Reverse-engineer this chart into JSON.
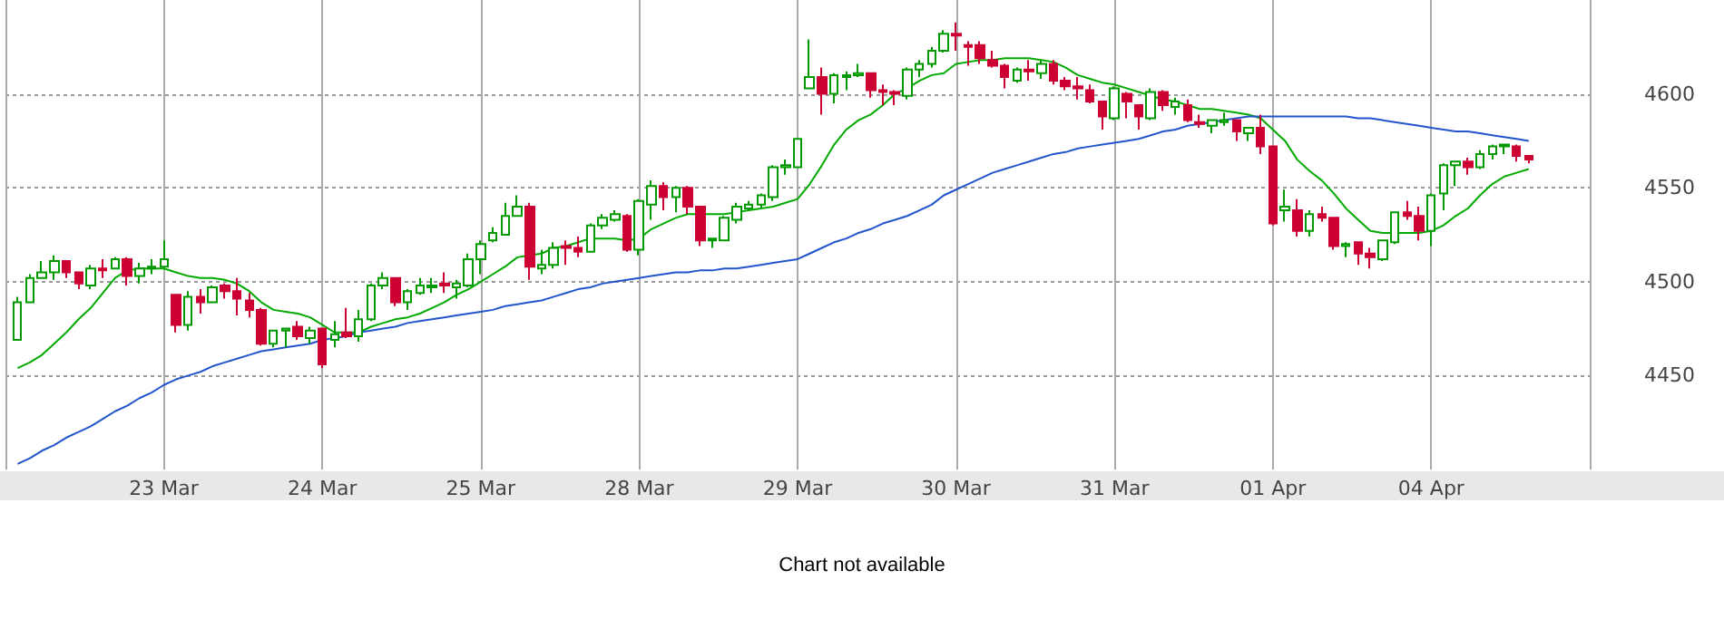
{
  "chart_data": {
    "type": "candlestick",
    "categories": [
      null,
      null,
      null,
      null,
      null,
      null,
      null,
      null,
      null,
      null,
      null,
      null,
      "23 Mar",
      null,
      null,
      null,
      null,
      null,
      null,
      null,
      null,
      null,
      null,
      null,
      null,
      "24 Mar",
      null,
      null,
      null,
      null,
      null,
      null,
      null,
      null,
      null,
      null,
      null,
      null,
      "25 Mar",
      null,
      null,
      null,
      null,
      null,
      null,
      null,
      null,
      null,
      null,
      null,
      null,
      "28 Mar",
      null,
      null,
      null,
      null,
      null,
      null,
      null,
      null,
      null,
      null,
      null,
      null,
      "29 Mar",
      null,
      null,
      null,
      null,
      null,
      null,
      null,
      null,
      null,
      null,
      null,
      null,
      "30 Mar",
      null,
      null,
      null,
      null,
      null,
      null,
      null,
      null,
      null,
      null,
      null,
      null,
      "31 Mar",
      null,
      null,
      null,
      null,
      null,
      null,
      null,
      null,
      null,
      null,
      null,
      null,
      "01 Apr",
      null,
      null,
      null,
      null,
      null,
      null,
      null,
      null,
      null,
      null,
      null,
      null,
      "04 Apr",
      null,
      null,
      null,
      null,
      null,
      null,
      null,
      null
    ],
    "ohlc": [
      [
        4469,
        4492,
        4469,
        4489
      ],
      [
        4489,
        4504,
        4489,
        4502
      ],
      [
        4502,
        4511,
        4502,
        4505
      ],
      [
        4505,
        4514,
        4501,
        4511
      ],
      [
        4511,
        4511,
        4502,
        4505
      ],
      [
        4505,
        4505,
        4496,
        4499
      ],
      [
        4498,
        4509,
        4496,
        4507
      ],
      [
        4507,
        4512,
        4502,
        4506
      ],
      [
        4507,
        4513,
        4507,
        4512
      ],
      [
        4512,
        4513,
        4498,
        4503
      ],
      [
        4503,
        4510,
        4499,
        4507
      ],
      [
        4507,
        4512,
        4504,
        4508
      ],
      [
        4508,
        4522,
        4508,
        4512
      ],
      [
        4493,
        4493,
        4473,
        4477
      ],
      [
        4477,
        4495,
        4474,
        4492
      ],
      [
        4492,
        4496,
        4483,
        4489
      ],
      [
        4489,
        4498,
        4489,
        4497
      ],
      [
        4498,
        4499,
        4491,
        4495
      ],
      [
        4495,
        4502,
        4482,
        4491
      ],
      [
        4490,
        4494,
        4481,
        4485
      ],
      [
        4485,
        4486,
        4466,
        4467
      ],
      [
        4467,
        4474,
        4465,
        4474
      ],
      [
        4474,
        4475,
        4465,
        4475
      ],
      [
        4476,
        4479,
        4469,
        4471
      ],
      [
        4470,
        4476,
        4467,
        4474
      ],
      [
        4475,
        4475,
        4454,
        4456
      ],
      [
        4469,
        4479,
        4465,
        4472
      ],
      [
        4473,
        4486,
        4470,
        4471
      ],
      [
        4471,
        4485,
        4468,
        4480
      ],
      [
        4480,
        4499,
        4479,
        4498
      ],
      [
        4498,
        4505,
        4496,
        4502
      ],
      [
        4502,
        4502,
        4487,
        4489
      ],
      [
        4489,
        4496,
        4485,
        4495
      ],
      [
        4494,
        4502,
        4493,
        4498
      ],
      [
        4497,
        4502,
        4494,
        4498
      ],
      [
        4499,
        4505,
        4494,
        4498
      ],
      [
        4497,
        4501,
        4491,
        4499
      ],
      [
        4498,
        4515,
        4497,
        4512
      ],
      [
        4512,
        4522,
        4504,
        4520
      ],
      [
        4522,
        4529,
        4521,
        4526
      ],
      [
        4525,
        4542,
        4525,
        4535
      ],
      [
        4535,
        4546,
        4535,
        4540
      ],
      [
        4540,
        4542,
        4501,
        4508
      ],
      [
        4507,
        4517,
        4504,
        4509
      ],
      [
        4509,
        4521,
        4507,
        4518
      ],
      [
        4519,
        4522,
        4509,
        4518
      ],
      [
        4518,
        4524,
        4513,
        4516
      ],
      [
        4516,
        4531,
        4516,
        4530
      ],
      [
        4530,
        4536,
        4528,
        4534
      ],
      [
        4533,
        4538,
        4532,
        4536
      ],
      [
        4535,
        4536,
        4516,
        4517
      ],
      [
        4517,
        4544,
        4514,
        4543
      ],
      [
        4541,
        4554,
        4533,
        4551
      ],
      [
        4551,
        4553,
        4538,
        4545
      ],
      [
        4545,
        4551,
        4537,
        4550
      ],
      [
        4550,
        4551,
        4536,
        4540
      ],
      [
        4540,
        4540,
        4519,
        4522
      ],
      [
        4522,
        4523,
        4518,
        4523
      ],
      [
        4522,
        4535,
        4522,
        4534
      ],
      [
        4533,
        4542,
        4531,
        4540
      ],
      [
        4539,
        4543,
        4538,
        4541
      ],
      [
        4541,
        4547,
        4539,
        4546
      ],
      [
        4545,
        4562,
        4543,
        4561
      ],
      [
        4561,
        4565,
        4557,
        4562
      ],
      [
        4561,
        4576,
        4561,
        4576
      ],
      [
        4603,
        4629,
        4603,
        4609
      ],
      [
        4609,
        4614,
        4589,
        4600
      ],
      [
        4600,
        4611,
        4595,
        4610
      ],
      [
        4609,
        4612,
        4602,
        4610
      ],
      [
        4610,
        4616,
        4609,
        4611
      ],
      [
        4611,
        4611,
        4598,
        4602
      ],
      [
        4602,
        4605,
        4594,
        4601
      ],
      [
        4601,
        4602,
        4594,
        4600
      ],
      [
        4599,
        4614,
        4597,
        4613
      ],
      [
        4613,
        4618,
        4609,
        4616
      ],
      [
        4616,
        4625,
        4614,
        4623
      ],
      [
        4623,
        4634,
        4622,
        4632
      ],
      [
        4632,
        4638,
        4623,
        4631
      ],
      [
        4626,
        4628,
        4615,
        4625
      ],
      [
        4626,
        4628,
        4616,
        4619
      ],
      [
        4618,
        4623,
        4614,
        4615
      ],
      [
        4615,
        4616,
        4603,
        4609
      ],
      [
        4607,
        4614,
        4606,
        4613
      ],
      [
        4613,
        4618,
        4607,
        4612
      ],
      [
        4611,
        4618,
        4608,
        4616
      ],
      [
        4616,
        4618,
        4605,
        4607
      ],
      [
        4607,
        4609,
        4602,
        4604
      ],
      [
        4604,
        4609,
        4597,
        4603
      ],
      [
        4602,
        4605,
        4595,
        4596
      ],
      [
        4596,
        4596,
        4581,
        4588
      ],
      [
        4587,
        4604,
        4586,
        4603
      ],
      [
        4600,
        4601,
        4587,
        4596
      ],
      [
        4594,
        4594,
        4581,
        4588
      ],
      [
        4587,
        4603,
        4586,
        4601
      ],
      [
        4601,
        4602,
        4591,
        4594
      ],
      [
        4593,
        4598,
        4589,
        4596
      ],
      [
        4594,
        4597,
        4585,
        4586
      ],
      [
        4585,
        4589,
        4582,
        4584
      ],
      [
        4583,
        4586,
        4579,
        4586
      ],
      [
        4585,
        4590,
        4583,
        4586
      ],
      [
        4586,
        4586,
        4575,
        4580
      ],
      [
        4579,
        4582,
        4575,
        4582
      ],
      [
        4582,
        4589,
        4568,
        4572
      ],
      [
        4572,
        4572,
        4530,
        4531
      ],
      [
        4538,
        4549,
        4532,
        4540
      ],
      [
        4538,
        4544,
        4524,
        4527
      ],
      [
        4527,
        4538,
        4524,
        4536
      ],
      [
        4536,
        4540,
        4532,
        4534
      ],
      [
        4534,
        4534,
        4517,
        4519
      ],
      [
        4519,
        4521,
        4513,
        4520
      ],
      [
        4521,
        4521,
        4509,
        4515
      ],
      [
        4515,
        4518,
        4507,
        4513
      ],
      [
        4512,
        4522,
        4511,
        4522
      ],
      [
        4521,
        4537,
        4520,
        4537
      ],
      [
        4537,
        4543,
        4533,
        4535
      ],
      [
        4535,
        4540,
        4522,
        4527
      ],
      [
        4527,
        4547,
        4519,
        4546
      ],
      [
        4547,
        4563,
        4538,
        4562
      ],
      [
        4562,
        4564,
        4551,
        4564
      ],
      [
        4564,
        4566,
        4557,
        4561
      ],
      [
        4561,
        4570,
        4560,
        4568
      ],
      [
        4568,
        4573,
        4565,
        4572
      ],
      [
        4572,
        4573,
        4568,
        4573
      ],
      [
        4572,
        4573,
        4564,
        4567
      ],
      [
        4567,
        4567,
        4563,
        4565
      ]
    ],
    "series": [
      {
        "type": "line",
        "color": "#00aa00",
        "values": [
          4454,
          4457,
          4461,
          4467,
          4473,
          4480,
          4486,
          4494,
          4502,
          4506,
          4507,
          4507,
          4507,
          4505,
          4503,
          4502,
          4502,
          4501,
          4499,
          4495,
          4489,
          4485,
          4484,
          4483,
          4481,
          4477,
          4473,
          4473,
          4473,
          4476,
          4478,
          4480,
          4481,
          4483,
          4486,
          4489,
          4493,
          4496,
          4500,
          4504,
          4508,
          4513,
          4514,
          4515,
          4518,
          4519,
          4521,
          4523,
          4523,
          4523,
          4522,
          4523,
          4528,
          4531,
          4534,
          4536,
          4536,
          4536,
          4536,
          4537,
          4538,
          4539,
          4540,
          4542,
          4544,
          4552,
          4562,
          4573,
          4581,
          4586,
          4589,
          4594,
          4600,
          4603,
          4607,
          4610,
          4611,
          4616,
          4617,
          4618,
          4618,
          4619,
          4619,
          4619,
          4618,
          4617,
          4614,
          4610,
          4608,
          4606,
          4605,
          4603,
          4601,
          4599,
          4597,
          4596,
          4594,
          4592,
          4592,
          4591,
          4590,
          4589,
          4587,
          4581,
          4575,
          4565,
          4559,
          4554,
          4547,
          4539,
          4533,
          4527,
          4526,
          4526,
          4526,
          4526,
          4527,
          4530,
          4535,
          4539,
          4546,
          4552,
          4556,
          4558,
          4560
        ]
      },
      {
        "type": "line",
        "color": "#2255cc",
        "values": [
          4403,
          4406,
          4410,
          4413,
          4417,
          4420,
          4423,
          4427,
          4431,
          4434,
          4438,
          4441,
          4445,
          4448,
          4450,
          4452,
          4455,
          4457,
          4459,
          4461,
          4463,
          4464,
          4465,
          4466,
          4467,
          4469,
          4470,
          4471,
          4473,
          4474,
          4475,
          4476,
          4478,
          4479,
          4480,
          4481,
          4482,
          4483,
          4484,
          4485,
          4487,
          4488,
          4489,
          4490,
          4492,
          4494,
          4496,
          4497,
          4499,
          4500,
          4501,
          4502,
          4503,
          4504,
          4505,
          4505,
          4506,
          4506,
          4507,
          4507,
          4508,
          4509,
          4510,
          4511,
          4512,
          4515,
          4518,
          4521,
          4523,
          4526,
          4528,
          4531,
          4533,
          4535,
          4538,
          4541,
          4546,
          4549,
          4552,
          4555,
          4558,
          4560,
          4562,
          4564,
          4566,
          4568,
          4569,
          4571,
          4572,
          4573,
          4574,
          4575,
          4576,
          4578,
          4580,
          4581,
          4583,
          4584,
          4585,
          4586,
          4587,
          4588,
          4588,
          4588,
          4588,
          4588,
          4588,
          4588,
          4588,
          4588,
          4587,
          4587,
          4586,
          4585,
          4584,
          4583,
          4582,
          4581,
          4580,
          4580,
          4579,
          4578,
          4577,
          4576,
          4575
        ]
      }
    ],
    "ylim": [
      4400,
      4650
    ],
    "yticks": [
      4450,
      4500,
      4550,
      4600
    ],
    "grid": true,
    "marker": "none",
    "annotations": [
      "Chart not available"
    ]
  }
}
